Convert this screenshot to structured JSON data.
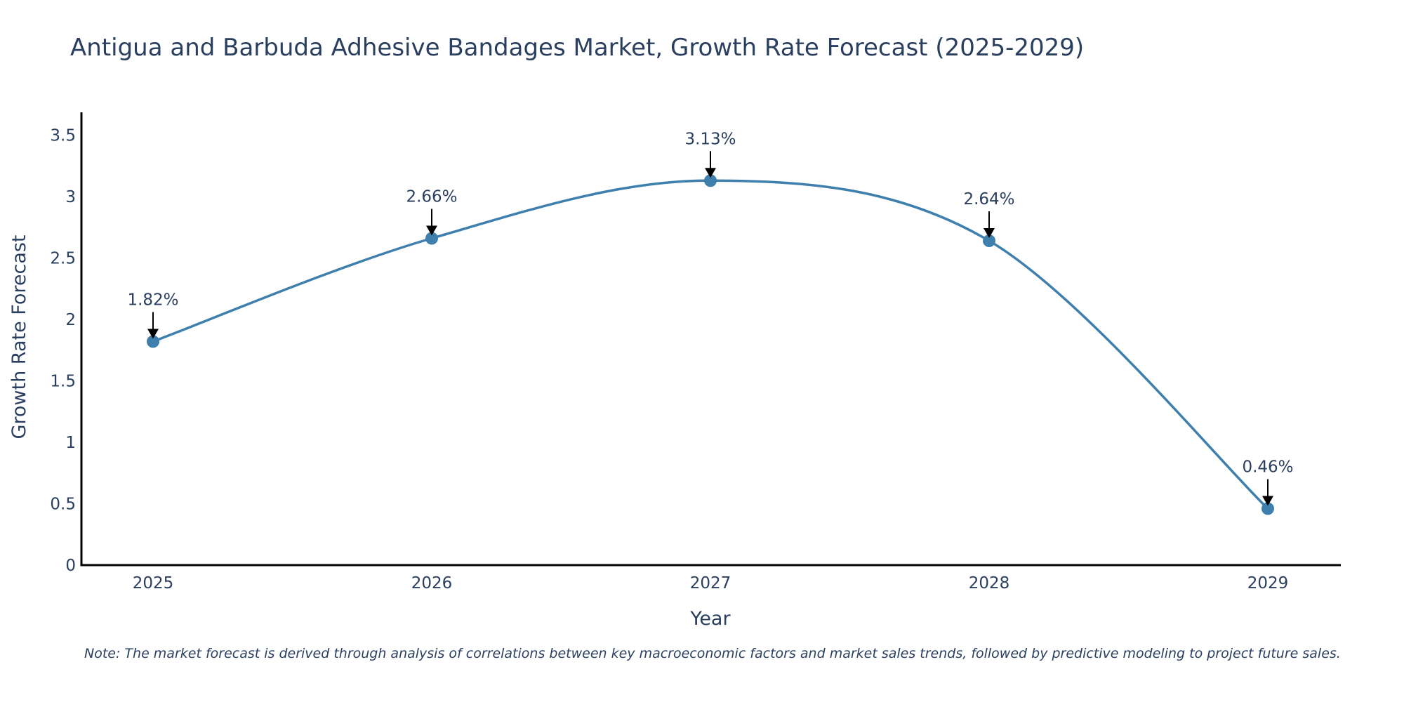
{
  "chart_data": {
    "type": "line",
    "title": "Antigua and Barbuda Adhesive Bandages Market, Growth Rate Forecast (2025-2029)",
    "xlabel": "Year",
    "ylabel": "Growth Rate Forecast",
    "categories": [
      "2025",
      "2026",
      "2027",
      "2028",
      "2029"
    ],
    "series": [
      {
        "name": "Growth Rate Forecast",
        "values": [
          1.82,
          2.66,
          3.13,
          2.64,
          0.46
        ]
      }
    ],
    "data_labels": [
      "1.82%",
      "2.66%",
      "3.13%",
      "2.64%",
      "0.46%"
    ],
    "ylim": [
      0,
      3.6
    ],
    "yticks": [
      0,
      0.5,
      1,
      1.5,
      2,
      2.5,
      3,
      3.5
    ],
    "ytick_labels": [
      "0",
      "0.5",
      "1",
      "1.5",
      "2",
      "2.5",
      "3",
      "3.5"
    ],
    "line_color": "#3f7fae",
    "marker_color": "#3f7fae",
    "grid": false,
    "note": "Note: The market forecast is derived through analysis of correlations between key macroeconomic factors and market sales trends, followed by predictive modeling to project future sales."
  }
}
